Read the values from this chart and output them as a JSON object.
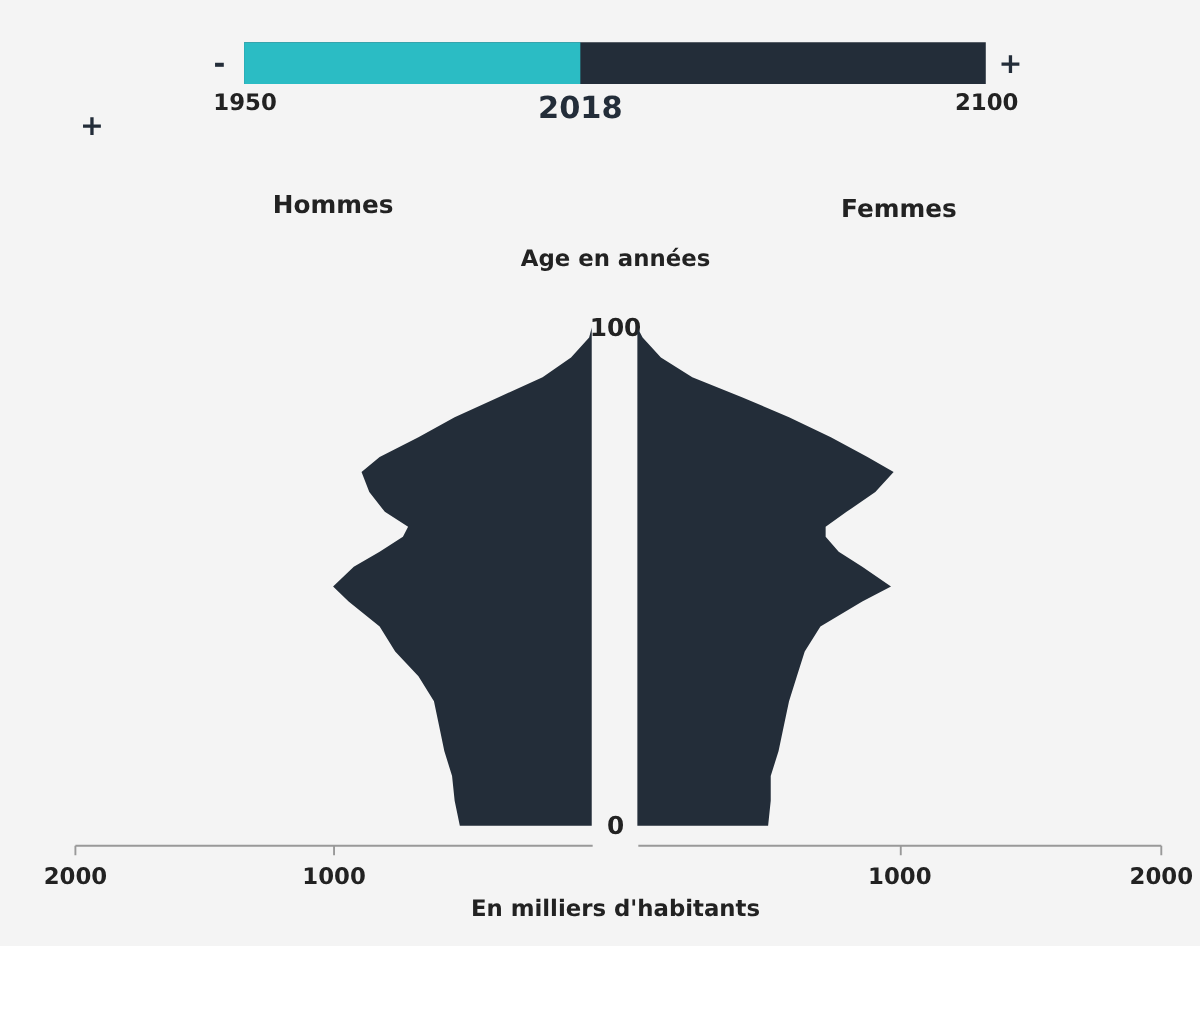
{
  "chart_data": [
    {
      "type": "bar",
      "orientation": "horizontal",
      "categories": [
        null
      ],
      "base": [
        1950
      ],
      "values": [
        68
      ],
      "value_labels": [
        "2018"
      ],
      "xlim": [
        1950,
        2100
      ],
      "xticks": [
        1950,
        2100
      ],
      "tick_labels": "x",
      "color": "#2bbcc4",
      "bands": [
        {
          "axis": "x",
          "from": 1950,
          "to": 2100,
          "color": "#232d39"
        }
      ],
      "annotations": [
        "-",
        "+",
        "+"
      ]
    },
    {
      "type": "area",
      "orientation": "horizontal",
      "title": "Hommes",
      "ylabel": "Age en années",
      "xlabel": "En milliers d'habitants",
      "color": "#232d39",
      "x": [
        0,
        5,
        10,
        15,
        20,
        25,
        30,
        35,
        40,
        45,
        48,
        52,
        55,
        58,
        60,
        63,
        67,
        71,
        74,
        78,
        82,
        86,
        90,
        94,
        98,
        100
      ],
      "values": [
        510,
        530,
        540,
        570,
        590,
        610,
        670,
        760,
        820,
        940,
        1000,
        920,
        820,
        730,
        710,
        800,
        860,
        890,
        820,
        670,
        530,
        360,
        190,
        80,
        10,
        0
      ],
      "xlim": [
        2000,
        0
      ],
      "xticks": [
        2000,
        1000
      ],
      "ylim": [
        0,
        100
      ],
      "yticks": [
        0,
        100
      ]
    },
    {
      "type": "area",
      "orientation": "horizontal",
      "title": "Femmes",
      "color": "#232d39",
      "tick_labels": "x",
      "x": [
        0,
        5,
        10,
        15,
        20,
        25,
        30,
        35,
        40,
        45,
        48,
        52,
        55,
        58,
        60,
        63,
        67,
        71,
        74,
        78,
        82,
        86,
        90,
        94,
        98,
        100
      ],
      "values": [
        500,
        510,
        510,
        540,
        560,
        580,
        610,
        640,
        700,
        860,
        970,
        860,
        770,
        720,
        720,
        800,
        910,
        980,
        880,
        740,
        580,
        400,
        210,
        90,
        20,
        0
      ],
      "xlim": [
        0,
        2000
      ],
      "xticks": [
        1000,
        2000
      ],
      "ylim": [
        0,
        100
      ]
    }
  ]
}
